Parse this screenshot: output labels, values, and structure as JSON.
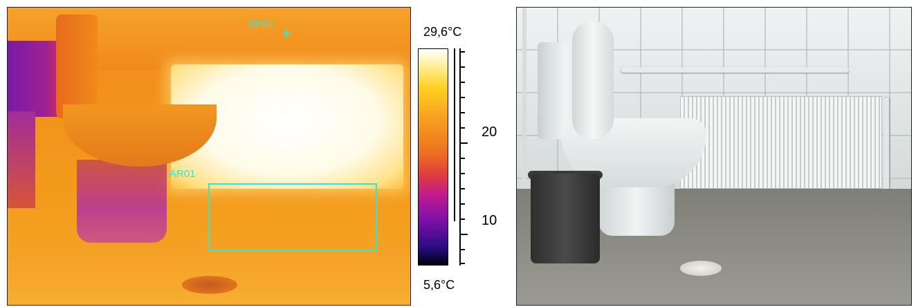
{
  "thermal_image": {
    "spot_label": "SP01",
    "area_label": "AR01",
    "scale_max": "29,6°C",
    "scale_min": "5,6°C",
    "scale_ticks": [
      "20",
      "10"
    ],
    "palette": "iron",
    "overlay_color": "#2ee8d8"
  },
  "photo": {
    "subject": "bathroom-photo"
  }
}
